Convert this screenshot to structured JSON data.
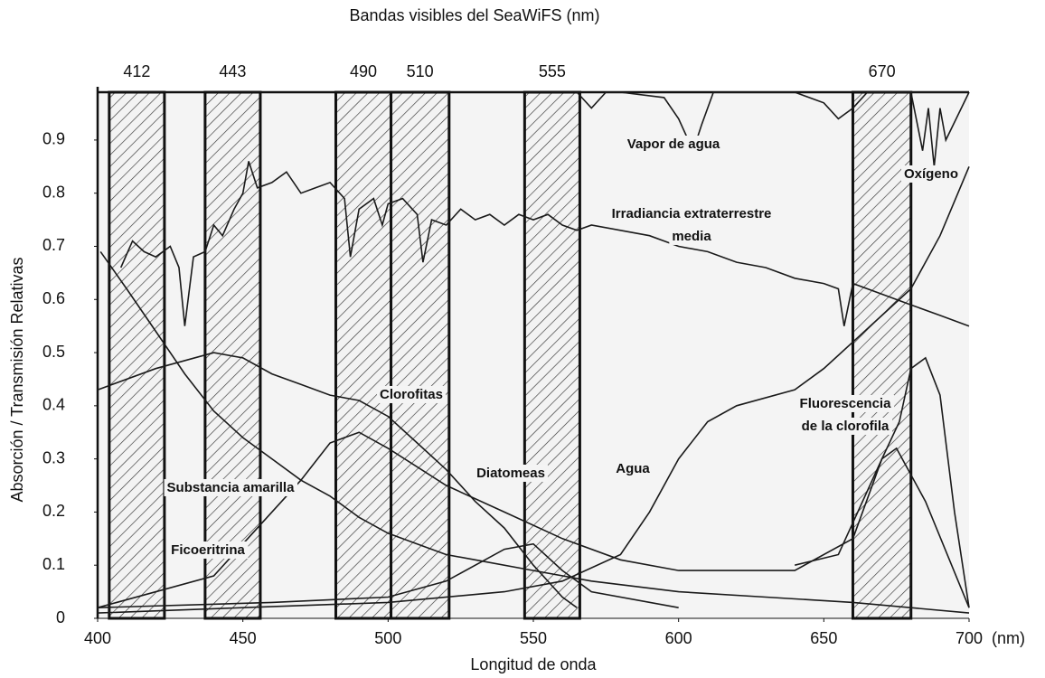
{
  "chart_data": {
    "type": "line",
    "title": "Bandas visibles del SeaWiFS (nm)",
    "xlabel": "Longitud de onda",
    "ylabel": "Absorción / Transmisión Relativas",
    "x_unit": "(nm)",
    "xlim": [
      400,
      700
    ],
    "xticks": [
      400,
      450,
      500,
      550,
      600,
      650,
      700
    ],
    "ylim": [
      0,
      0.99
    ],
    "yticks": [
      0,
      0.1,
      0.2,
      0.3,
      0.4,
      0.5,
      0.6,
      0.7,
      0.8,
      0.9
    ],
    "color": "#1a1a1a",
    "bands": [
      {
        "label": "412",
        "start": 404,
        "end": 423
      },
      {
        "label": "443",
        "start": 437,
        "end": 456
      },
      {
        "label": "490",
        "start": 482,
        "end": 501
      },
      {
        "label": "510",
        "start": 501,
        "end": 521
      },
      {
        "label": "555",
        "start": 547,
        "end": 566
      },
      {
        "label": "670",
        "start": 660,
        "end": 680
      }
    ],
    "series": [
      {
        "label": [
          "Vapor de agua"
        ],
        "x": [
          565,
          570,
          575,
          580,
          595,
          600,
          605,
          608,
          612,
          640,
          650,
          655,
          660,
          665,
          700
        ],
        "y": [
          0.99,
          0.96,
          0.99,
          0.99,
          0.98,
          0.94,
          0.88,
          0.93,
          0.99,
          0.99,
          0.97,
          0.94,
          0.96,
          0.99,
          0.99
        ]
      },
      {
        "label": [
          "Irradiancia extraterrestre",
          "media"
        ],
        "x": [
          408,
          412,
          416,
          420,
          425,
          428,
          430,
          433,
          437,
          440,
          443,
          447,
          450,
          452,
          455,
          460,
          465,
          470,
          475,
          480,
          485,
          487,
          490,
          495,
          498,
          500,
          505,
          510,
          512,
          515,
          520,
          525,
          530,
          535,
          540,
          545,
          550,
          555,
          560,
          565,
          570,
          580,
          590,
          600,
          610,
          620,
          630,
          640,
          650,
          655,
          657,
          660,
          670,
          680,
          690,
          700
        ],
        "y": [
          0.66,
          0.71,
          0.69,
          0.68,
          0.7,
          0.66,
          0.55,
          0.68,
          0.69,
          0.74,
          0.72,
          0.77,
          0.8,
          0.86,
          0.81,
          0.82,
          0.84,
          0.8,
          0.81,
          0.82,
          0.79,
          0.68,
          0.77,
          0.79,
          0.74,
          0.78,
          0.79,
          0.76,
          0.67,
          0.75,
          0.74,
          0.77,
          0.75,
          0.76,
          0.74,
          0.76,
          0.75,
          0.76,
          0.74,
          0.73,
          0.74,
          0.73,
          0.72,
          0.7,
          0.69,
          0.67,
          0.66,
          0.64,
          0.63,
          0.62,
          0.55,
          0.63,
          0.61,
          0.59,
          0.57,
          0.55
        ]
      },
      {
        "label": [
          "Oxígeno"
        ],
        "x": [
          680,
          684,
          686,
          688,
          690,
          692,
          700
        ],
        "y": [
          0.99,
          0.88,
          0.96,
          0.85,
          0.96,
          0.9,
          0.99
        ]
      },
      {
        "label": [
          "Clorofitas"
        ],
        "x": [
          400,
          420,
          440,
          450,
          460,
          470,
          480,
          490,
          500,
          510,
          520,
          530,
          540,
          550,
          560,
          565
        ],
        "y": [
          0.43,
          0.47,
          0.5,
          0.49,
          0.46,
          0.44,
          0.42,
          0.41,
          0.38,
          0.33,
          0.28,
          0.22,
          0.17,
          0.1,
          0.04,
          0.02
        ]
      },
      {
        "label": [
          "Diatomeas"
        ],
        "x": [
          400,
          440,
          470,
          480,
          490,
          500,
          520,
          540,
          560,
          580,
          600,
          640,
          660,
          670,
          675,
          685,
          700
        ],
        "y": [
          0.02,
          0.08,
          0.26,
          0.33,
          0.35,
          0.32,
          0.25,
          0.2,
          0.15,
          0.11,
          0.09,
          0.09,
          0.15,
          0.3,
          0.32,
          0.22,
          0.02
        ]
      },
      {
        "label": [
          "Agua"
        ],
        "x": [
          400,
          450,
          500,
          540,
          560,
          580,
          590,
          600,
          610,
          620,
          640,
          650,
          660,
          670,
          680,
          690,
          700
        ],
        "y": [
          0.01,
          0.02,
          0.03,
          0.05,
          0.07,
          0.12,
          0.2,
          0.3,
          0.37,
          0.4,
          0.43,
          0.47,
          0.52,
          0.57,
          0.62,
          0.72,
          0.85
        ]
      },
      {
        "label": [
          "Fluorescencia",
          "de la clorofila"
        ],
        "x": [
          640,
          655,
          660,
          670,
          676,
          680,
          685,
          690,
          695,
          700
        ],
        "y": [
          0.1,
          0.12,
          0.18,
          0.3,
          0.37,
          0.47,
          0.49,
          0.42,
          0.2,
          0.02
        ]
      },
      {
        "label": [
          "Substancia amarilla"
        ],
        "x": [
          401,
          410,
          420,
          430,
          440,
          450,
          460,
          470,
          480,
          490,
          500,
          510,
          520,
          530,
          550,
          570,
          600,
          630,
          660,
          700
        ],
        "y": [
          0.69,
          0.62,
          0.54,
          0.46,
          0.39,
          0.34,
          0.3,
          0.26,
          0.23,
          0.19,
          0.16,
          0.14,
          0.12,
          0.11,
          0.09,
          0.07,
          0.05,
          0.04,
          0.03,
          0.01
        ]
      },
      {
        "label": [
          "Ficoeritrina"
        ],
        "x": [
          400,
          460,
          500,
          520,
          540,
          550,
          560,
          570,
          600
        ],
        "y": [
          0.02,
          0.03,
          0.04,
          0.07,
          0.13,
          0.14,
          0.09,
          0.05,
          0.02
        ]
      }
    ]
  }
}
